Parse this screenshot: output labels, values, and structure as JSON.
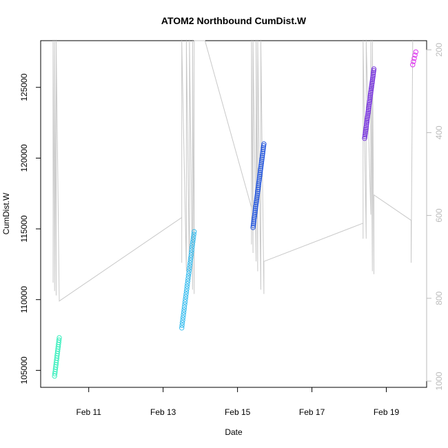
{
  "chart_data": {
    "type": "scatter",
    "title": "ATOM2 Northbound CumDist.W",
    "xlabel": "Date",
    "ylabel": "CumDist.W",
    "x_ticks": [
      "Feb 11",
      "Feb 13",
      "Feb 15",
      "Feb 17",
      "Feb 19"
    ],
    "y_ticks": [
      "105000",
      "110000",
      "115000",
      "120000",
      "125000"
    ],
    "y2_ticks": [
      "200",
      "400",
      "600",
      "800",
      "1000"
    ],
    "xlim": [
      "2024-02-09 17:00",
      "2024-02-20 02:00"
    ],
    "ylim": [
      103800,
      128300
    ],
    "y2lim": [
      1015,
      178
    ],
    "x_axis": "date",
    "y2_axis": "right side, inverted, gray",
    "grid": false,
    "legend": "none",
    "colors": {
      "cluster1": "#33eebb",
      "cluster2": "#33bbee",
      "cluster3": "#2255dd",
      "cluster4": "#7733dd",
      "cluster5": "#dd33ee",
      "trace": "#c8c8c8"
    },
    "series": [
      {
        "color_key": "cluster1",
        "x_start": "2024-02-10 02:00",
        "x_end": "2024-02-10 05:00",
        "y_start": 104600,
        "y_end": 107300,
        "count": 18
      },
      {
        "color_key": "cluster2",
        "x_start": "2024-02-13 12:00",
        "x_end": "2024-02-13 20:00",
        "y_start": 108000,
        "y_end": 114800,
        "count": 38
      },
      {
        "color_key": "cluster3",
        "x_start": "2024-02-15 10:00",
        "x_end": "2024-02-15 17:00",
        "y_start": 115100,
        "y_end": 121000,
        "count": 45
      },
      {
        "color_key": "cluster4",
        "x_start": "2024-02-18 10:00",
        "x_end": "2024-02-18 16:00",
        "y_start": 121400,
        "y_end": 126300,
        "count": 40
      },
      {
        "color_key": "cluster5",
        "x_start": "2024-02-19 17:00",
        "x_end": "2024-02-19 19:00",
        "y_start": 126600,
        "y_end": 127500,
        "count": 5
      }
    ],
    "trace_points": [
      [
        "2024-02-10 01:00",
        128300
      ],
      [
        "2024-02-10 01:00",
        111200
      ],
      [
        "2024-02-10 01:00",
        128300
      ],
      [
        "2024-02-10 02:00",
        110600
      ],
      [
        "2024-02-10 02:00",
        128300
      ],
      [
        "2024-02-10 03:00",
        110300
      ],
      [
        "2024-02-10 03:00",
        128300
      ],
      [
        "2024-02-10 05:00",
        109900
      ],
      [
        "2024-02-13 12:00",
        115800
      ],
      [
        "2024-02-13 12:00",
        112600
      ],
      [
        "2024-02-13 12:00",
        128300
      ],
      [
        "2024-02-13 15:00",
        112000
      ],
      [
        "2024-02-13 15:00",
        128300
      ],
      [
        "2024-02-13 17:00",
        111400
      ],
      [
        "2024-02-13 17:00",
        128300
      ],
      [
        "2024-02-13 19:00",
        110700
      ],
      [
        "2024-02-13 19:00",
        128300
      ],
      [
        "2024-02-13 20:00",
        110400
      ],
      [
        "2024-02-13 20:00",
        128300
      ],
      [
        "2024-02-14 03:00",
        128300
      ],
      [
        "2024-02-15 09:00",
        116500
      ],
      [
        "2024-02-15 09:00",
        113900
      ],
      [
        "2024-02-15 09:00",
        128300
      ],
      [
        "2024-02-15 10:00",
        113300
      ],
      [
        "2024-02-15 10:00",
        128300
      ],
      [
        "2024-02-15 12:00",
        112700
      ],
      [
        "2024-02-15 12:00",
        128300
      ],
      [
        "2024-02-15 13:00",
        112000
      ],
      [
        "2024-02-15 13:00",
        128300
      ],
      [
        "2024-02-15 15:00",
        110700
      ],
      [
        "2024-02-15 15:00",
        128300
      ],
      [
        "2024-02-15 17:00",
        110400
      ],
      [
        "2024-02-15 17:00",
        112700
      ],
      [
        "2024-02-18 09:00",
        115400
      ],
      [
        "2024-02-18 09:00",
        114300
      ],
      [
        "2024-02-18 09:00",
        128300
      ],
      [
        "2024-02-18 11:00",
        114300
      ],
      [
        "2024-02-18 11:00",
        128300
      ],
      [
        "2024-02-18 14:00",
        116000
      ],
      [
        "2024-02-18 14:00",
        128300
      ],
      [
        "2024-02-18 15:00",
        112000
      ],
      [
        "2024-02-18 15:00",
        128300
      ],
      [
        "2024-02-18 16:00",
        111800
      ],
      [
        "2024-02-18 16:00",
        117400
      ],
      [
        "2024-02-19 16:00",
        115600
      ],
      [
        "2024-02-19 16:00",
        112600
      ],
      [
        "2024-02-19 17:00",
        128300
      ]
    ]
  }
}
